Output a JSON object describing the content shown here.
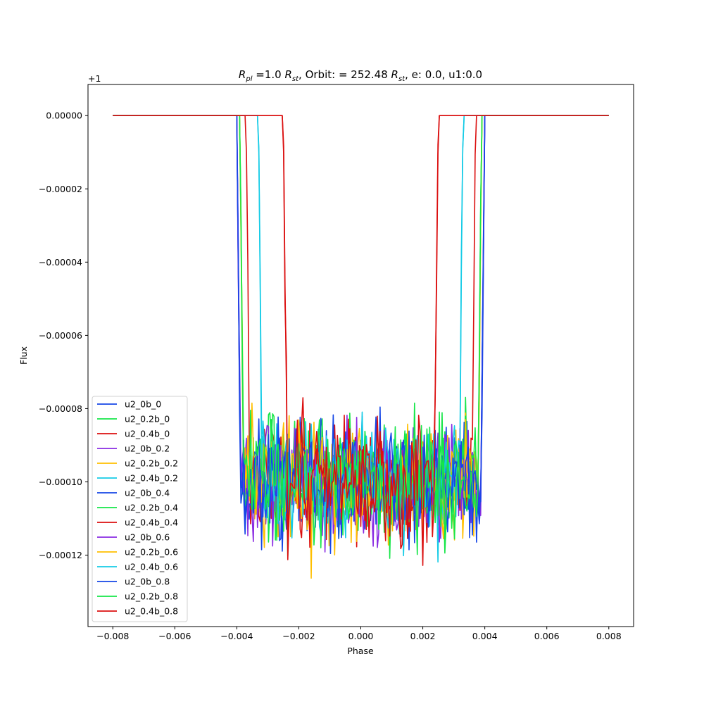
{
  "chart_data": {
    "type": "line",
    "title_parts": {
      "r_pl_main": "R",
      "r_pl_sub": "pl",
      "eq_radius": " =1.0 ",
      "r_st_main": "R",
      "r_st_sub": "st",
      "orbit_text": ", Orbit: = 252.48 ",
      "r_st2_main": "R",
      "r_st2_sub": "st",
      "tail": ", e: 0.0, u1:0.0"
    },
    "xlabel": "Phase",
    "ylabel": "Flux",
    "offset_text": "+1",
    "xlim": [
      -0.0088,
      0.0088
    ],
    "ylim": [
      -0.0001395,
      8.5e-06
    ],
    "xticks": [
      -0.008,
      -0.006,
      -0.004,
      -0.002,
      0.0,
      0.002,
      0.004,
      0.006,
      0.008
    ],
    "xtick_labels": [
      "−0.008",
      "−0.006",
      "−0.004",
      "−0.002",
      "0.000",
      "0.002",
      "0.004",
      "0.006",
      "0.008"
    ],
    "yticks": [
      0.0,
      -2e-05,
      -4e-05,
      -6e-05,
      -8e-05,
      -0.0001,
      -0.00012
    ],
    "ytick_labels": [
      "0.00000",
      "−0.00002",
      "−0.00004",
      "−0.00006",
      "−0.00008",
      "−0.00010",
      "−0.00012"
    ],
    "grid": false,
    "legend_position": "lower-left",
    "x_range": [
      -0.008,
      0.008
    ],
    "n_points": 361,
    "transit_depth": -0.0001,
    "noise_level": 7.5e-06,
    "series": [
      {
        "name": "u2_0b_0",
        "color": "#1546e6",
        "ingress": -0.004,
        "egress": 0.004,
        "seed": 11
      },
      {
        "name": "u2_0.2b_0",
        "color": "#15e648",
        "ingress": -0.0039,
        "egress": 0.0039,
        "seed": 23
      },
      {
        "name": "u2_0.4b_0",
        "color": "#db0f0f",
        "ingress": -0.0037,
        "egress": 0.0037,
        "seed": 37
      },
      {
        "name": "u2_0b_0.2",
        "color": "#8a2be2",
        "ingress": -0.004,
        "egress": 0.004,
        "seed": 41
      },
      {
        "name": "u2_0.2b_0.2",
        "color": "#ffbf00",
        "ingress": -0.0039,
        "egress": 0.0039,
        "seed": 53
      },
      {
        "name": "u2_0.4b_0.2",
        "color": "#14cbe6",
        "ingress": -0.0033,
        "egress": 0.0033,
        "seed": 67
      },
      {
        "name": "u2_0b_0.4",
        "color": "#1546e6",
        "ingress": -0.004,
        "egress": 0.004,
        "seed": 71
      },
      {
        "name": "u2_0.2b_0.4",
        "color": "#15e648",
        "ingress": -0.0039,
        "egress": 0.0039,
        "seed": 83
      },
      {
        "name": "u2_0.4b_0.4",
        "color": "#db0f0f",
        "ingress": -0.0025,
        "egress": 0.0025,
        "seed": 97
      },
      {
        "name": "u2_0b_0.6",
        "color": "#8a2be2",
        "ingress": -0.004,
        "egress": 0.004,
        "seed": 101
      },
      {
        "name": "u2_0.2b_0.6",
        "color": "#ffbf00",
        "ingress": -0.0039,
        "egress": 0.0039,
        "seed": 113
      },
      {
        "name": "u2_0.4b_0.6",
        "color": "#14cbe6",
        "ingress": -0.0033,
        "egress": 0.0033,
        "seed": 127
      },
      {
        "name": "u2_0b_0.8",
        "color": "#1546e6",
        "ingress": -0.004,
        "egress": 0.004,
        "seed": 131
      },
      {
        "name": "u2_0.2b_0.8",
        "color": "#15e648",
        "ingress": -0.0039,
        "egress": 0.0039,
        "seed": 149
      },
      {
        "name": "u2_0.4b_0.8",
        "color": "#db0f0f",
        "ingress": -0.0025,
        "egress": 0.0025,
        "seed": 157
      }
    ]
  }
}
